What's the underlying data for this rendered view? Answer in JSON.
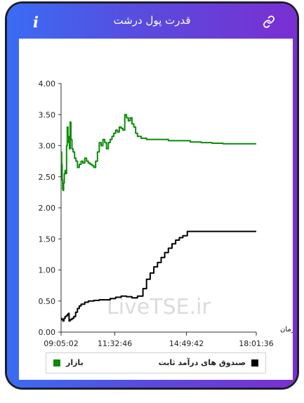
{
  "header": {
    "title": "قدرت پول درشت",
    "info_icon": "i",
    "link_icon": "link-icon"
  },
  "watermark": "LiveTSE.ir",
  "colors": {
    "market": "#0a8a0a",
    "fixed_income": "#000000"
  },
  "chart_data": {
    "type": "line",
    "xlabel": "زمان",
    "ylabel": "",
    "ylim": [
      0,
      4
    ],
    "yticks": [
      "0.00",
      "0.50",
      "1.00",
      "1.50",
      "2.00",
      "2.50",
      "3.00",
      "3.50",
      "4.00"
    ],
    "xticks": [
      "09:05:02",
      "11:32:46",
      "14:49:42",
      "18:01:36"
    ],
    "x_time_range": [
      "09:05:02",
      "18:01:36"
    ],
    "legend_position": "bottom",
    "series": [
      {
        "name": "بازار",
        "color": "#0a8a0a",
        "points": [
          [
            "09:05:02",
            2.9
          ],
          [
            "09:06:30",
            2.7
          ],
          [
            "09:08:00",
            2.45
          ],
          [
            "09:09:20",
            2.3
          ],
          [
            "09:10:30",
            2.28
          ],
          [
            "09:12:00",
            2.4
          ],
          [
            "09:14:00",
            2.55
          ],
          [
            "09:16:00",
            2.6
          ],
          [
            "09:18:00",
            2.55
          ],
          [
            "09:20:00",
            3.0
          ],
          [
            "09:22:00",
            3.3
          ],
          [
            "09:24:00",
            3.15
          ],
          [
            "09:26:00",
            3.05
          ],
          [
            "09:28:00",
            2.95
          ],
          [
            "09:30:00",
            3.38
          ],
          [
            "09:32:00",
            3.1
          ],
          [
            "09:35:00",
            2.95
          ],
          [
            "09:38:00",
            2.9
          ],
          [
            "09:42:00",
            2.8
          ],
          [
            "09:46:00",
            2.75
          ],
          [
            "09:50:00",
            2.65
          ],
          [
            "09:55:00",
            2.7
          ],
          [
            "10:00:00",
            2.75
          ],
          [
            "10:05:00",
            2.72
          ],
          [
            "10:10:00",
            2.8
          ],
          [
            "10:15:00",
            2.75
          ],
          [
            "10:20:00",
            2.72
          ],
          [
            "10:25:00",
            2.7
          ],
          [
            "10:30:00",
            2.68
          ],
          [
            "10:35:00",
            2.65
          ],
          [
            "10:40:00",
            2.75
          ],
          [
            "10:45:00",
            2.9
          ],
          [
            "10:50:00",
            3.05
          ],
          [
            "10:55:00",
            3.0
          ],
          [
            "11:00:00",
            3.1
          ],
          [
            "11:05:00",
            3.05
          ],
          [
            "11:10:00",
            2.95
          ],
          [
            "11:15:00",
            3.05
          ],
          [
            "11:20:00",
            3.1
          ],
          [
            "11:25:00",
            3.15
          ],
          [
            "11:30:00",
            3.2
          ],
          [
            "11:35:00",
            3.25
          ],
          [
            "11:40:00",
            3.22
          ],
          [
            "11:45:00",
            3.3
          ],
          [
            "11:50:00",
            3.28
          ],
          [
            "11:55:00",
            3.25
          ],
          [
            "12:00:00",
            3.5
          ],
          [
            "12:05:00",
            3.45
          ],
          [
            "12:10:00",
            3.4
          ],
          [
            "12:15:00",
            3.45
          ],
          [
            "12:20:00",
            3.35
          ],
          [
            "12:25:00",
            3.3
          ],
          [
            "12:30:00",
            3.2
          ],
          [
            "12:35:00",
            3.15
          ],
          [
            "12:45:00",
            3.12
          ],
          [
            "13:00:00",
            3.1
          ],
          [
            "13:30:00",
            3.1
          ],
          [
            "14:00:00",
            3.08
          ],
          [
            "14:30:00",
            3.08
          ],
          [
            "15:00:00",
            3.06
          ],
          [
            "15:30:00",
            3.05
          ],
          [
            "16:00:00",
            3.04
          ],
          [
            "16:30:00",
            3.03
          ],
          [
            "17:00:00",
            3.03
          ],
          [
            "17:30:00",
            3.03
          ],
          [
            "18:01:36",
            3.03
          ]
        ]
      },
      {
        "name": "صندوق های درآمد ثابت",
        "color": "#000000",
        "points": [
          [
            "09:05:02",
            0.22
          ],
          [
            "09:07:00",
            0.2
          ],
          [
            "09:10:00",
            0.18
          ],
          [
            "09:13:00",
            0.22
          ],
          [
            "09:16:00",
            0.25
          ],
          [
            "09:19:00",
            0.26
          ],
          [
            "09:22:00",
            0.28
          ],
          [
            "09:25:00",
            0.3
          ],
          [
            "09:27:00",
            0.18
          ],
          [
            "09:30:00",
            0.2
          ],
          [
            "09:35:00",
            0.22
          ],
          [
            "09:40:00",
            0.25
          ],
          [
            "09:45:00",
            0.32
          ],
          [
            "09:50:00",
            0.38
          ],
          [
            "09:55:00",
            0.42
          ],
          [
            "10:00:00",
            0.45
          ],
          [
            "10:10:00",
            0.48
          ],
          [
            "10:20:00",
            0.5
          ],
          [
            "10:35:00",
            0.51
          ],
          [
            "10:50:00",
            0.52
          ],
          [
            "11:05:00",
            0.52
          ],
          [
            "11:20:00",
            0.54
          ],
          [
            "11:35:00",
            0.56
          ],
          [
            "11:50:00",
            0.58
          ],
          [
            "12:05:00",
            0.57
          ],
          [
            "12:20:00",
            0.55
          ],
          [
            "12:35:00",
            0.58
          ],
          [
            "12:50:00",
            0.7
          ],
          [
            "13:00:00",
            0.85
          ],
          [
            "13:10:00",
            0.95
          ],
          [
            "13:20:00",
            1.05
          ],
          [
            "13:30:00",
            1.12
          ],
          [
            "13:40:00",
            1.2
          ],
          [
            "13:50:00",
            1.28
          ],
          [
            "14:00:00",
            1.35
          ],
          [
            "14:10:00",
            1.42
          ],
          [
            "14:20:00",
            1.48
          ],
          [
            "14:30:00",
            1.52
          ],
          [
            "14:40:00",
            1.55
          ],
          [
            "14:52:00",
            1.62
          ],
          [
            "15:30:00",
            1.62
          ],
          [
            "16:30:00",
            1.62
          ],
          [
            "17:30:00",
            1.62
          ],
          [
            "18:01:36",
            1.62
          ]
        ]
      }
    ]
  },
  "legend": {
    "fixed_income_label": "صندوق های درآمد ثابت",
    "market_label": "بازار"
  }
}
